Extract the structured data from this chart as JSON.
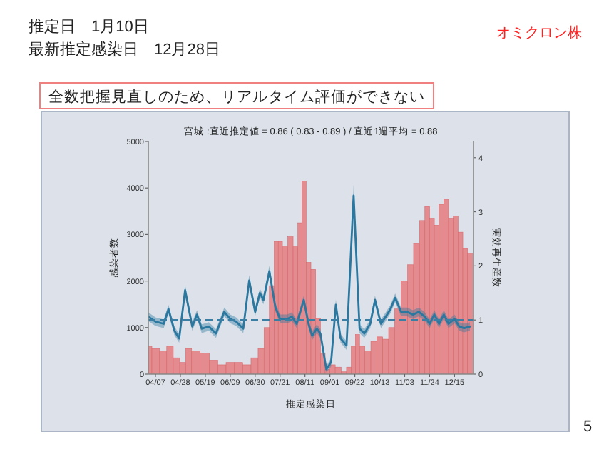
{
  "chart_data": {
    "type": "bar",
    "title": "宮城 :直近推定値 = 0.86 ( 0.83 - 0.89 ) / 直近1週平均 = 0.88",
    "xlabel": "推定感染日",
    "ylabel": "感染者数",
    "y2label": "実効再生産数",
    "annotations": [
      "推定日　1月10日",
      "最新推定感染日　12月28日",
      "オミクロン株",
      "全数把握見直しのため、リアルタイム評価ができない",
      "5"
    ],
    "xlim": [
      "--04-01",
      "--12-31"
    ],
    "xticks": [
      {
        "value": "--04-07",
        "label": "04/07"
      },
      {
        "value": "--04-28",
        "label": "04/28"
      },
      {
        "value": "--05-19",
        "label": "05/19"
      },
      {
        "value": "--06-09",
        "label": "06/09"
      },
      {
        "value": "--06-30",
        "label": "06/30"
      },
      {
        "value": "--07-21",
        "label": "07/21"
      },
      {
        "value": "--08-11",
        "label": "08/11"
      },
      {
        "value": "--09-01",
        "label": "09/01"
      },
      {
        "value": "--09-22",
        "label": "09/22"
      },
      {
        "value": "--10-13",
        "label": "10/13"
      },
      {
        "value": "--11-03",
        "label": "11/03"
      },
      {
        "value": "--11-24",
        "label": "11/24"
      },
      {
        "value": "--12-15",
        "label": "12/15"
      }
    ],
    "ylim": [
      0,
      5000
    ],
    "yticks": [
      0,
      1000,
      2000,
      3000,
      4000,
      5000
    ],
    "y2lim": [
      0,
      4.3
    ],
    "y2ticks": [
      0,
      1,
      2,
      3,
      4
    ],
    "ref_lines": [
      {
        "axis": "y2",
        "value": 1,
        "color": "#3a7fa3",
        "line_style": "dashed"
      }
    ],
    "series": [
      {
        "color": "#e38b8e",
        "x": [
          "--04-01",
          "--04-07",
          "--04-14",
          "--04-19",
          "--04-25",
          "--04-30",
          "--05-05",
          "--05-10",
          "--05-19",
          "--05-26",
          "--06-02",
          "--06-09",
          "--06-16",
          "--06-23",
          "--06-30",
          "--07-05",
          "--07-10",
          "--07-14",
          "--07-18",
          "--07-21",
          "--07-25",
          "--07-30",
          "--08-03",
          "--08-07",
          "--08-10",
          "--08-14",
          "--08-18",
          "--08-22",
          "--08-26",
          "--08-30",
          "--09-03",
          "--09-08",
          "--09-13",
          "--09-17",
          "--09-21",
          "--09-24",
          "--09-28",
          "--10-03",
          "--10-08",
          "--10-13",
          "--10-18",
          "--10-23",
          "--10-28",
          "--11-03",
          "--11-08",
          "--11-13",
          "--11-18",
          "--11-22",
          "--11-26",
          "--11-30",
          "--12-04",
          "--12-08",
          "--12-12",
          "--12-16",
          "--12-20",
          "--12-24",
          "--12-28"
        ],
        "values": [
          600,
          550,
          500,
          600,
          350,
          250,
          550,
          500,
          450,
          300,
          200,
          250,
          250,
          200,
          350,
          550,
          1000,
          1900,
          2850,
          2850,
          2750,
          2950,
          2750,
          3250,
          4150,
          2400,
          2250,
          1200,
          450,
          100,
          200,
          150,
          50,
          150,
          600,
          850,
          600,
          500,
          700,
          800,
          750,
          1000,
          1400,
          2000,
          2350,
          2800,
          3300,
          3600,
          3350,
          3200,
          3650,
          3750,
          3350,
          3400,
          3050,
          2700,
          2600
        ]
      },
      {
        "type": "line",
        "axis": "y2",
        "color": "#2a77a0",
        "x": [
          "--04-01",
          "--04-07",
          "--04-14",
          "--04-18",
          "--04-23",
          "--04-27",
          "--05-02",
          "--05-08",
          "--05-12",
          "--05-16",
          "--05-22",
          "--05-28",
          "--06-04",
          "--06-09",
          "--06-14",
          "--06-20",
          "--06-25",
          "--06-30",
          "--07-04",
          "--07-07",
          "--07-12",
          "--07-17",
          "--07-21",
          "--07-27",
          "--07-31",
          "--08-04",
          "--08-10",
          "--08-14",
          "--08-17",
          "--08-21",
          "--08-24",
          "--08-29",
          "--09-02",
          "--09-06",
          "--09-10",
          "--09-15",
          "--09-21",
          "--09-26",
          "--09-30",
          "--10-05",
          "--10-09",
          "--10-14",
          "--10-18",
          "--10-22",
          "--10-26",
          "--10-31",
          "--11-05",
          "--11-10",
          "--11-15",
          "--11-20",
          "--11-24",
          "--11-28",
          "--12-02",
          "--12-06",
          "--12-10",
          "--12-15",
          "--12-19",
          "--12-23",
          "--12-28"
        ],
        "values": [
          1.06,
          0.97,
          0.93,
          1.2,
          0.8,
          0.66,
          1.55,
          0.88,
          1.1,
          0.84,
          0.88,
          0.75,
          1.15,
          1.02,
          0.97,
          0.84,
          1.73,
          1.15,
          1.5,
          1.37,
          1.9,
          1.24,
          1.02,
          1.02,
          1.06,
          0.93,
          1.37,
          0.93,
          0.71,
          0.84,
          0.75,
          0.09,
          0.22,
          1.28,
          0.66,
          0.53,
          3.3,
          0.84,
          0.75,
          0.93,
          1.37,
          0.93,
          1.06,
          1.2,
          1.41,
          1.15,
          1.15,
          1.1,
          1.15,
          1.06,
          0.93,
          1.1,
          0.93,
          1.1,
          0.93,
          1.02,
          0.88,
          0.85,
          0.88
        ],
        "lower": [
          0.98,
          0.89,
          0.85,
          1.12,
          0.72,
          0.58,
          1.45,
          0.8,
          1.02,
          0.76,
          0.8,
          0.67,
          1.07,
          0.94,
          0.89,
          0.76,
          1.63,
          1.07,
          1.42,
          1.29,
          1.8,
          1.16,
          0.94,
          0.94,
          0.98,
          0.85,
          1.29,
          0.85,
          0.63,
          0.76,
          0.67,
          0.03,
          0.14,
          1.18,
          0.58,
          0.45,
          3.1,
          0.76,
          0.67,
          0.85,
          1.29,
          0.85,
          0.98,
          1.12,
          1.33,
          1.07,
          1.07,
          1.02,
          1.07,
          0.98,
          0.85,
          1.02,
          0.85,
          1.02,
          0.85,
          0.94,
          0.8,
          0.77,
          0.8
        ],
        "upper": [
          1.14,
          1.05,
          1.01,
          1.28,
          0.88,
          0.74,
          1.65,
          0.96,
          1.18,
          0.92,
          0.96,
          0.83,
          1.23,
          1.1,
          1.05,
          0.92,
          1.83,
          1.23,
          1.58,
          1.45,
          2.0,
          1.32,
          1.1,
          1.1,
          1.14,
          1.01,
          1.45,
          1.01,
          0.79,
          0.92,
          0.83,
          0.15,
          0.3,
          1.38,
          0.74,
          0.61,
          3.5,
          0.92,
          0.83,
          1.01,
          1.45,
          1.01,
          1.14,
          1.28,
          1.49,
          1.23,
          1.23,
          1.18,
          1.23,
          1.14,
          1.01,
          1.18,
          1.01,
          1.18,
          1.01,
          1.1,
          0.96,
          0.93,
          0.96
        ]
      }
    ]
  }
}
